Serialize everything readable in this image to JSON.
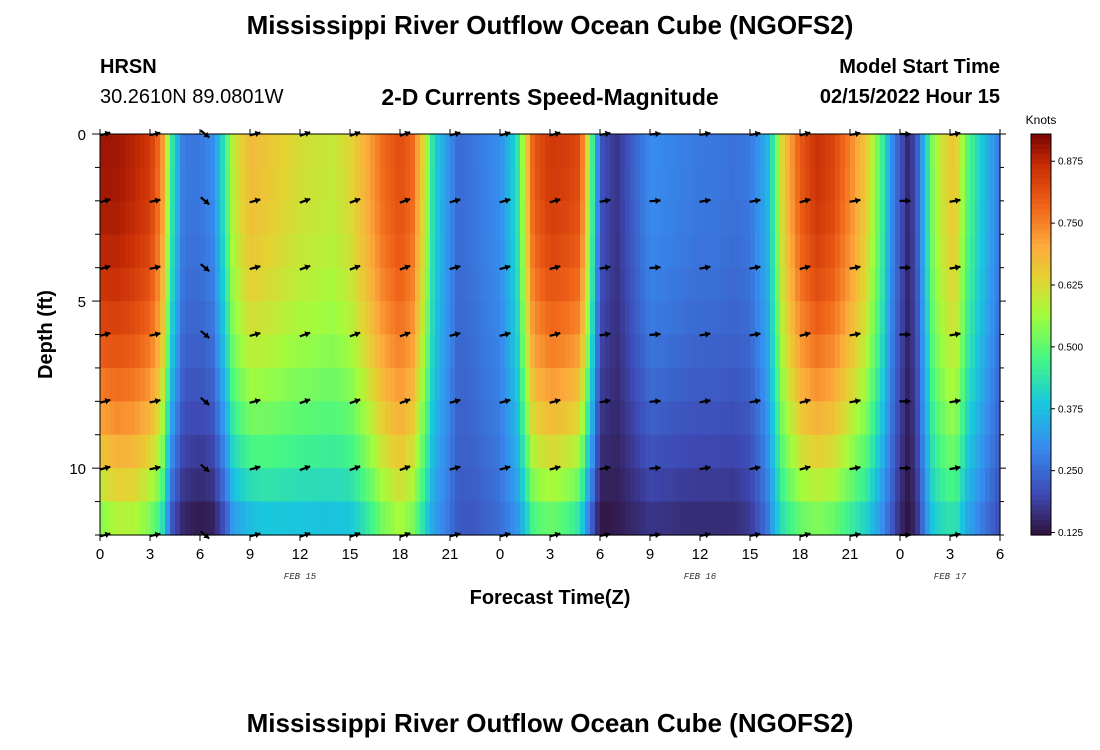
{
  "page": {
    "title": "Mississippi River Outflow Ocean Cube (NGOFS2)",
    "station_name": "HRSN",
    "station_coords": "30.2610N  89.0801W",
    "subtitle": "2-D Currents Speed-Magnitude",
    "model_start_label": "Model Start Time",
    "model_start_value": "02/15/2022 Hour 15",
    "footer_title": "Mississippi River Outflow Ocean Cube (NGOFS2)"
  },
  "chart_data": {
    "type": "heatmap",
    "title": "2-D Currents Speed-Magnitude",
    "xlabel": "Forecast Time(Z)",
    "ylabel": "Depth (ft)",
    "x_range_hours": [
      0,
      54
    ],
    "y_range_ft": [
      0,
      12
    ],
    "y_inverted": true,
    "x_tick_labels": [
      "0",
      "3",
      "6",
      "9",
      "12",
      "15",
      "18",
      "21",
      "0",
      "3",
      "6",
      "9",
      "12",
      "15",
      "18",
      "21",
      "0",
      "3",
      "6"
    ],
    "y_tick_labels": [
      "0",
      "5",
      "10"
    ],
    "y_tick_values": [
      0,
      5,
      10
    ],
    "date_labels": [
      {
        "text": "FEB 15",
        "hour": 12
      },
      {
        "text": "FEB 16",
        "hour": 36
      },
      {
        "text": "FEB 17",
        "hour": 51
      }
    ],
    "colorbar": {
      "title": "Knots",
      "range": [
        0.12,
        0.93
      ],
      "tick_labels": [
        "0.875",
        "0.750",
        "0.625",
        "0.500",
        "0.375",
        "0.250",
        "0.125"
      ],
      "tick_values": [
        0.875,
        0.75,
        0.625,
        0.5,
        0.375,
        0.25,
        0.125
      ]
    },
    "time_profile": {
      "hours": [
        0,
        1,
        2,
        3,
        3.7,
        4.3,
        5,
        6,
        6.8,
        7.5,
        8,
        9,
        10,
        12,
        14,
        15,
        16,
        17,
        18,
        18.8,
        19.5,
        20,
        20.7,
        21.5,
        22.5,
        24,
        25,
        25.5,
        26,
        27,
        28,
        28.8,
        29.3,
        30,
        31,
        33,
        35,
        36,
        37,
        38,
        39,
        40,
        40.5,
        41,
        42,
        43,
        44,
        45,
        46,
        47,
        47.5,
        48,
        48.5,
        49,
        49.5,
        50,
        51,
        51.5,
        52,
        53,
        54
      ],
      "surface_knots": [
        0.9,
        0.9,
        0.88,
        0.85,
        0.75,
        0.45,
        0.27,
        0.27,
        0.3,
        0.45,
        0.6,
        0.68,
        0.66,
        0.62,
        0.6,
        0.63,
        0.7,
        0.78,
        0.82,
        0.78,
        0.6,
        0.42,
        0.33,
        0.25,
        0.27,
        0.3,
        0.42,
        0.62,
        0.8,
        0.85,
        0.84,
        0.82,
        0.6,
        0.22,
        0.17,
        0.3,
        0.28,
        0.27,
        0.27,
        0.26,
        0.27,
        0.35,
        0.48,
        0.65,
        0.8,
        0.86,
        0.83,
        0.75,
        0.65,
        0.45,
        0.3,
        0.22,
        0.15,
        0.22,
        0.38,
        0.55,
        0.66,
        0.63,
        0.5,
        0.38,
        0.27
      ],
      "bottom_knots": [
        0.5,
        0.55,
        0.55,
        0.5,
        0.42,
        0.2,
        0.14,
        0.12,
        0.13,
        0.2,
        0.3,
        0.34,
        0.36,
        0.36,
        0.36,
        0.36,
        0.42,
        0.5,
        0.55,
        0.5,
        0.4,
        0.32,
        0.28,
        0.22,
        0.22,
        0.25,
        0.3,
        0.36,
        0.45,
        0.48,
        0.45,
        0.4,
        0.25,
        0.12,
        0.13,
        0.16,
        0.15,
        0.15,
        0.15,
        0.15,
        0.17,
        0.25,
        0.35,
        0.42,
        0.48,
        0.5,
        0.48,
        0.43,
        0.38,
        0.28,
        0.22,
        0.15,
        0.12,
        0.16,
        0.28,
        0.38,
        0.42,
        0.4,
        0.33,
        0.26,
        0.2
      ]
    },
    "vector_times_hours": [
      0,
      3,
      6,
      9,
      12,
      15,
      18,
      21,
      24,
      27,
      30,
      33,
      36,
      39,
      42,
      45,
      48,
      51
    ],
    "vector_depths_ft": [
      0,
      2,
      4,
      6,
      8,
      10,
      12
    ],
    "vector_angles_deg": [
      15,
      12,
      -40,
      15,
      20,
      20,
      20,
      15,
      15,
      15,
      10,
      5,
      10,
      10,
      15,
      10,
      0,
      10
    ],
    "vector_direction_note": "arrows point toward direction of flow; angle measured from west, negative = down"
  }
}
